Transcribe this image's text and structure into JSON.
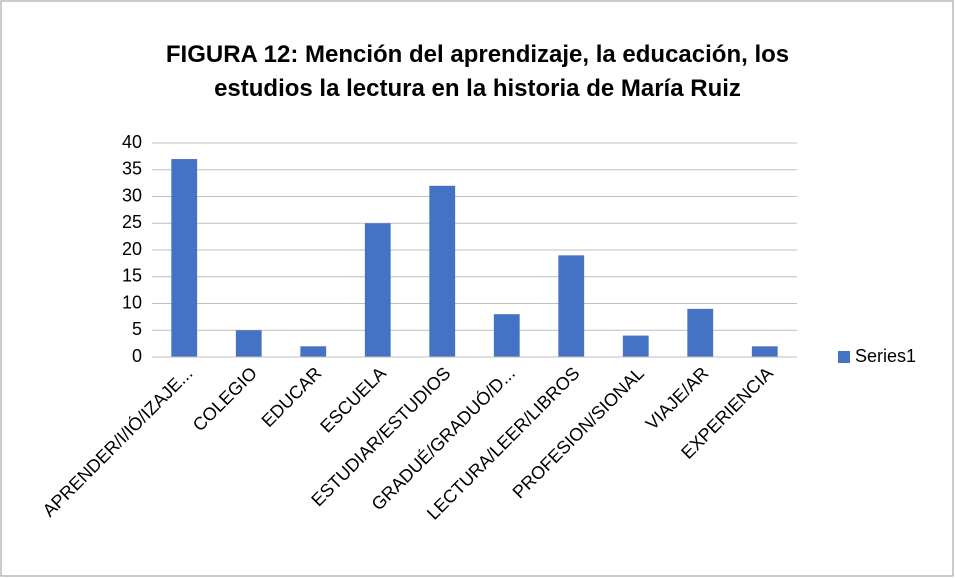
{
  "chart_data": {
    "type": "bar",
    "title": "FIGURA 12: Mención del aprendizaje, la educación, los estudios la lectura en la historia de María Ruiz",
    "categories": [
      "APRENDER/I/IÓ/IZAJE...",
      "COLEGIO",
      "EDUCAR",
      "ESCUELA",
      "ESTUDIAR/ESTUDIOS",
      "GRADUÉ/GRADUÓ/D...",
      "LECTURA/LEER/LIBROS",
      "PROFESION/SIONAL",
      "VIAJE/AR",
      "EXPERIENCIA"
    ],
    "series": [
      {
        "name": "Series1",
        "color": "#4472c4",
        "values": [
          37,
          5,
          2,
          25,
          32,
          8,
          19,
          4,
          9,
          2
        ]
      }
    ],
    "ylim": [
      0,
      40
    ],
    "yticks": [
      0,
      5,
      10,
      15,
      20,
      25,
      30,
      35,
      40
    ],
    "grid": true,
    "legend": "right"
  }
}
